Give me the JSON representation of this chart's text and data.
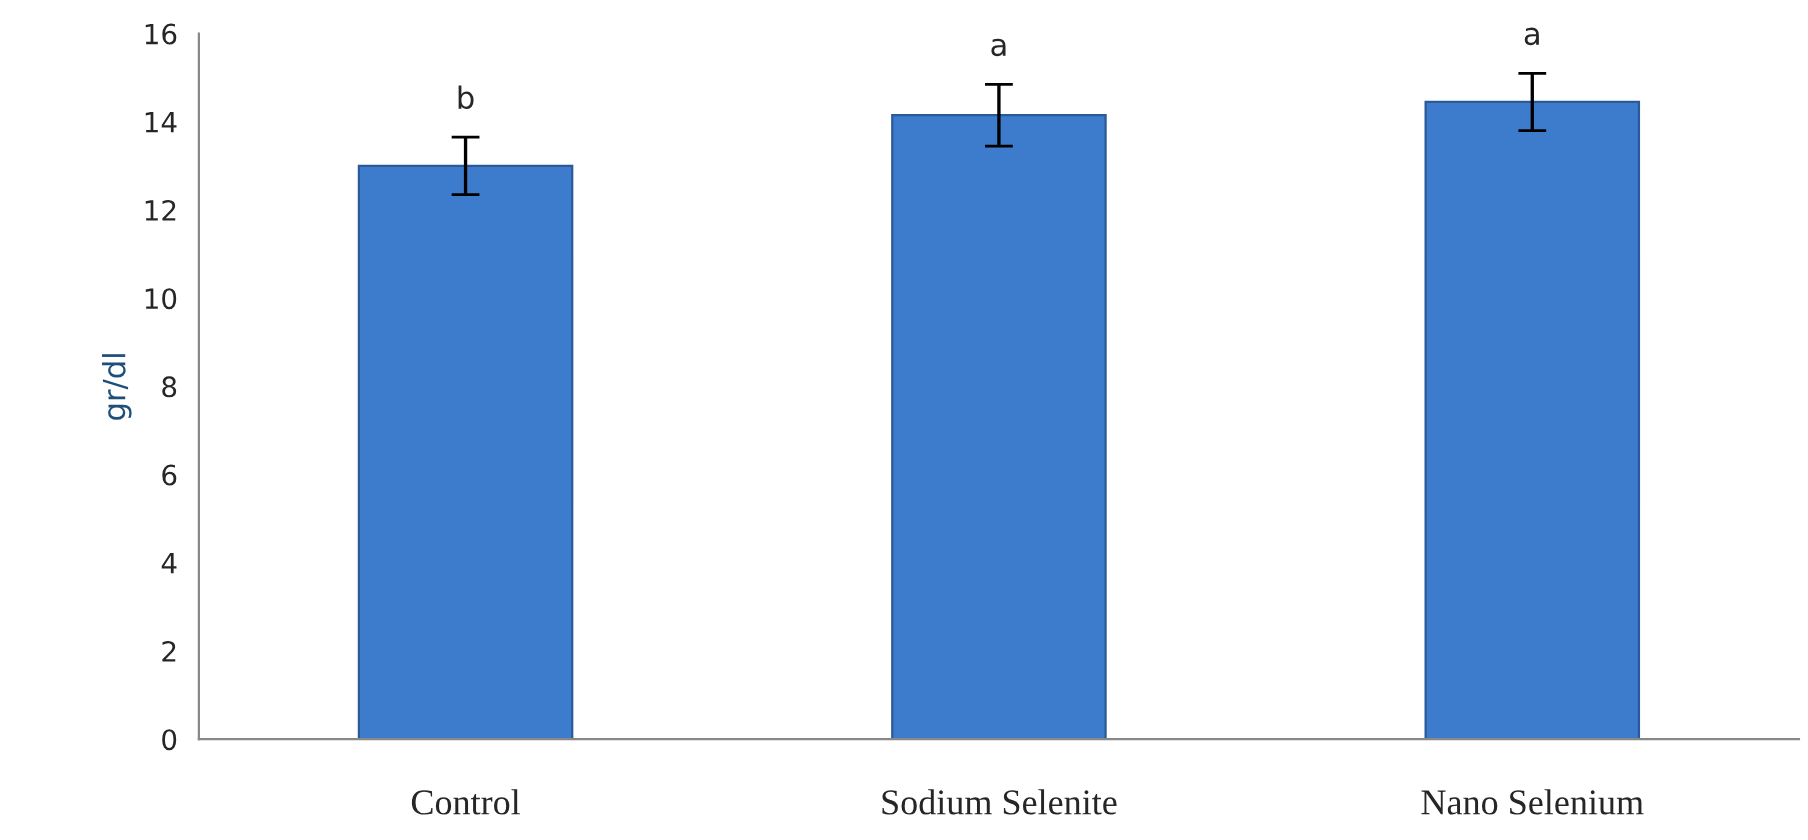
{
  "chart_data": {
    "type": "bar",
    "ylabel": "gr/dl",
    "categories": [
      "Control",
      "Sodium Selenite",
      "Nano Selenium"
    ],
    "values": [
      13.0,
      14.15,
      14.45
    ],
    "errors": [
      0.65,
      0.7,
      0.65
    ],
    "color": "#3d7bcc",
    "ylim": [
      0,
      16
    ],
    "yticks": [
      0,
      2,
      4,
      6,
      8,
      10,
      12,
      14,
      16
    ],
    "grid": false,
    "annotations": [
      "b",
      "a",
      "a"
    ]
  }
}
